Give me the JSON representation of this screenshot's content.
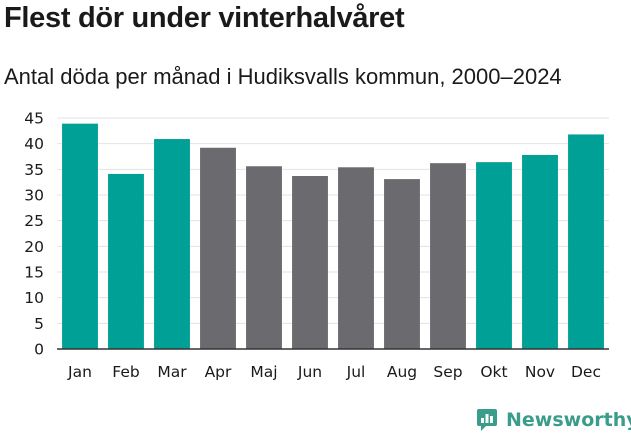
{
  "title": "Flest dör under vinterhalvåret",
  "subtitle": "Antal döda per månad i Hudiksvalls kommun, 2000–2024",
  "brand": {
    "name": "Newsworthy",
    "icon": "newsworthy-logo-icon",
    "color": "#3a9c8a"
  },
  "colors": {
    "winter": "#00a096",
    "summer": "#6b6a6e",
    "grid": "#e3e3e3",
    "axis": "#333333"
  },
  "chart_data": {
    "type": "bar",
    "title": "Flest dör under vinterhalvåret",
    "subtitle": "Antal döda per månad i Hudiksvalls kommun, 2000–2024",
    "xlabel": "",
    "ylabel": "",
    "ylim": [
      0,
      45
    ],
    "yticks": [
      0,
      5,
      10,
      15,
      20,
      25,
      30,
      35,
      40,
      45
    ],
    "grid": true,
    "categories": [
      "Jan",
      "Feb",
      "Mar",
      "Apr",
      "Maj",
      "Jun",
      "Jul",
      "Aug",
      "Sep",
      "Okt",
      "Nov",
      "Dec"
    ],
    "values": [
      43.9,
      34.1,
      40.9,
      39.2,
      35.6,
      33.7,
      35.4,
      33.1,
      36.2,
      36.4,
      37.8,
      41.8
    ],
    "groups": [
      "winter",
      "winter",
      "winter",
      "summer",
      "summer",
      "summer",
      "summer",
      "summer",
      "summer",
      "winter",
      "winter",
      "winter"
    ]
  }
}
